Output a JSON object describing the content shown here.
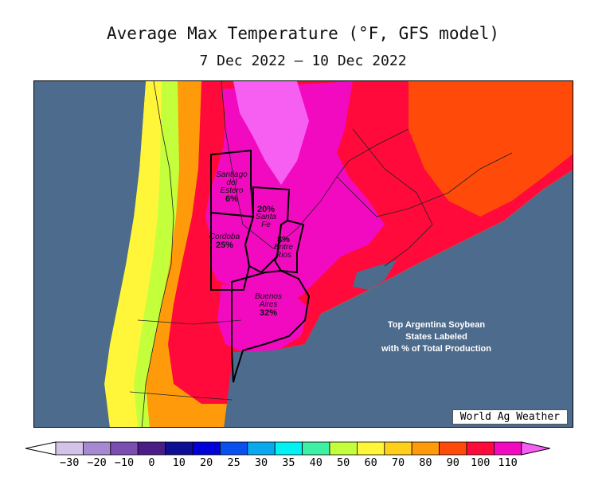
{
  "title": "Average Max Temperature (°F, GFS model)",
  "subtitle": "7 Dec 2022 — 10 Dec 2022",
  "map": {
    "ocean_color": "#4d6b8c",
    "provinces": [
      {
        "name": "Santiago del Estero",
        "label_lines": [
          "Santiago",
          "del",
          "Estero"
        ],
        "share": "6%"
      },
      {
        "name": "Santa Fe",
        "label_lines": [
          "Santa",
          "Fe"
        ],
        "share": "20%"
      },
      {
        "name": "Cordoba",
        "label_lines": [
          "Cordoba"
        ],
        "share": "25%"
      },
      {
        "name": "Entre Rios",
        "label_lines": [
          "Entre",
          "Rios"
        ],
        "share": "8%"
      },
      {
        "name": "Buenos Aires",
        "label_lines": [
          "Buenos",
          "Aires"
        ],
        "share": "32%"
      }
    ],
    "note_lines": [
      "Top Argentina Soybean",
      "States Labeled",
      "with % of Total Production"
    ],
    "credit": "World Ag Weather"
  },
  "legend": {
    "ticks": [
      "−30",
      "−20",
      "−10",
      "0",
      "10",
      "20",
      "25",
      "30",
      "35",
      "40",
      "50",
      "60",
      "70",
      "80",
      "90",
      "100",
      "110"
    ],
    "colors": [
      "#d4c3e8",
      "#a689d1",
      "#7b4fb2",
      "#4a1d86",
      "#0f0f95",
      "#0000d8",
      "#0a50ee",
      "#0aa9ee",
      "#00f2f2",
      "#3ef0a4",
      "#c4ff3c",
      "#fff63a",
      "#ffcf1a",
      "#ff9a0a",
      "#ff4a0a",
      "#ff0a3a",
      "#f20ac0"
    ],
    "low_arrow_color": "#ffffff",
    "high_arrow_color": "#f75ff3"
  }
}
